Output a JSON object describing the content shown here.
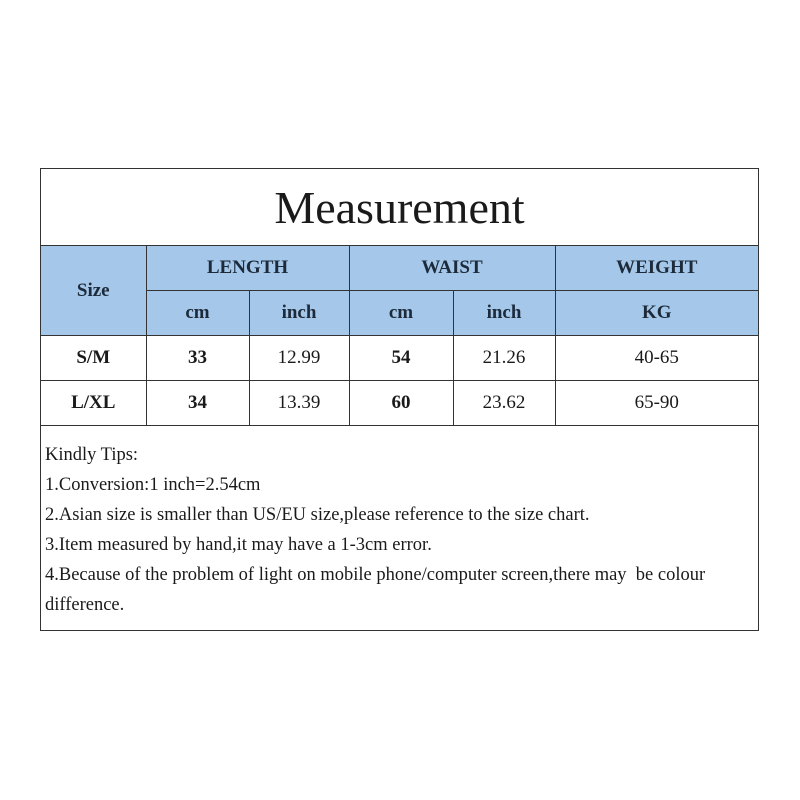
{
  "title": "Measurement",
  "headers": {
    "size": "Size",
    "length": "LENGTH",
    "waist": "WAIST",
    "weight": "WEIGHT",
    "length_cm": "cm",
    "length_inch": "inch",
    "waist_cm": "cm",
    "waist_inch": "inch",
    "weight_unit": "KG"
  },
  "rows": [
    {
      "size": "S/M",
      "length_cm": "33",
      "length_inch": "12.99",
      "waist_cm": "54",
      "waist_inch": "21.26",
      "weight": "40-65"
    },
    {
      "size": "L/XL",
      "length_cm": "34",
      "length_inch": "13.39",
      "waist_cm": "60",
      "waist_inch": "23.62",
      "weight": "65-90"
    }
  ],
  "tips": [
    "Kindly Tips:",
    "1.Conversion:1 inch=2.54cm",
    "2.Asian size is smaller than US/EU size,please reference to the size chart.",
    "3.Item measured by hand,it may have a 1-3cm error.",
    "4.Because of the problem of light on mobile phone/computer screen,there may  be colour difference."
  ],
  "colors": {
    "header_bg": "#a5c8ea",
    "border": "#333333"
  }
}
